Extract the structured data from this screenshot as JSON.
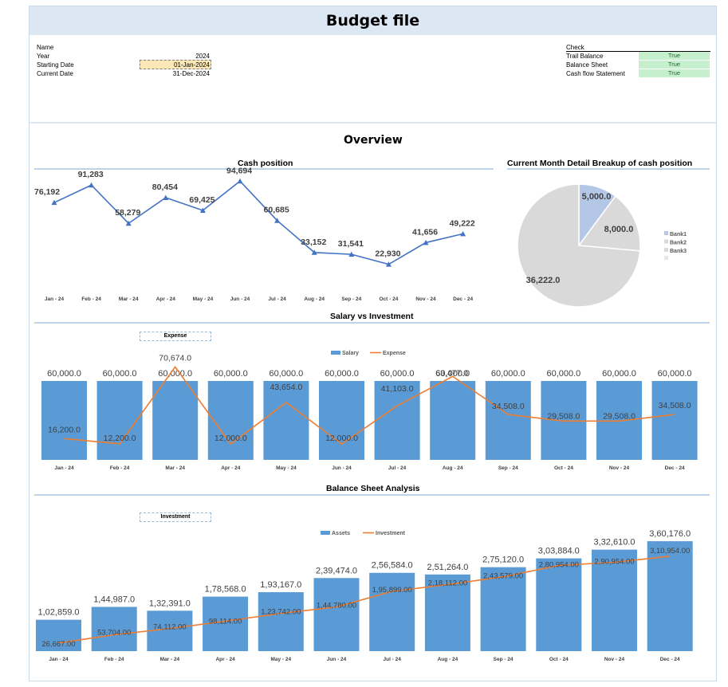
{
  "title": "Budget file",
  "info": {
    "labels": [
      "Name",
      "Year",
      "Starting Date",
      "Current Date"
    ],
    "year": "2024",
    "starting_date": "01-Jan-2024",
    "current_date": "31-Dec-2024"
  },
  "check": {
    "header": "Check",
    "items": [
      {
        "label": "Trail Balance",
        "value": "True"
      },
      {
        "label": "Balance Sheet",
        "value": "True"
      },
      {
        "label": "Cash flow Statement",
        "value": "True"
      }
    ]
  },
  "overview_title": "Overview",
  "colors": {
    "blue_bar": "#5b9bd5",
    "orange_line": "#ed7d31",
    "line_blue": "#4472c4",
    "pie_grey": "#d9d9d9",
    "pie_blue": "#b4c7e7"
  },
  "chart_data": [
    {
      "type": "line",
      "title": "Cash position",
      "categories": [
        "Jan - 24",
        "Feb - 24",
        "Mar - 24",
        "Apr - 24",
        "May - 24",
        "Jun - 24",
        "Jul - 24",
        "Aug - 24",
        "Sep - 24",
        "Oct - 24",
        "Nov - 24",
        "Dec - 24"
      ],
      "values": [
        76192,
        91283,
        58279,
        80454,
        69425,
        94694,
        60685,
        33152,
        31541,
        22930,
        41656,
        49222
      ],
      "labels": [
        "76,192",
        "91,283",
        "58,279",
        "80,454",
        "69,425",
        "94,694",
        "60,685",
        "33,152",
        "31,541",
        "22,930",
        "41,656",
        "49,222"
      ],
      "ylim": [
        0,
        110000
      ]
    },
    {
      "type": "pie",
      "title": "Current Month Detail Breakup of cash position",
      "slices": [
        {
          "name": "Bank1",
          "value": 5000,
          "label": "5,000.0"
        },
        {
          "name": "Bank2",
          "value": 8000,
          "label": "8,000.0"
        },
        {
          "name": "Bank3",
          "value": 36222,
          "label": "36,222.0"
        }
      ],
      "legend": "right"
    },
    {
      "type": "bar",
      "title": "Salary vs Investment",
      "filter_label": "Expense",
      "categories": [
        "Jan - 24",
        "Feb - 24",
        "Mar - 24",
        "Apr - 24",
        "May - 24",
        "Jun - 24",
        "Jul - 24",
        "Aug - 24",
        "Sep - 24",
        "Oct - 24",
        "Nov - 24",
        "Dec - 24"
      ],
      "series": [
        {
          "name": "Salary",
          "kind": "bar",
          "values": [
            60000,
            60000,
            60000,
            60000,
            60000,
            60000,
            60000,
            60000,
            60000,
            60000,
            60000,
            60000
          ],
          "labels": [
            "60,000.0",
            "60,000.0",
            "60,000.0",
            "60,000.0",
            "60,000.0",
            "60,000.0",
            "60,000.0",
            "60,000.0",
            "60,000.0",
            "60,000.0",
            "60,000.0",
            "60,000.0"
          ]
        },
        {
          "name": "Expense",
          "kind": "line",
          "values": [
            16200,
            12200,
            70674,
            12000,
            43654,
            12000,
            41103,
            63477,
            34508,
            29508,
            29508,
            34508
          ],
          "labels": [
            "16,200.0",
            "12,200.0",
            "70,674.0",
            "12,000.0",
            "43,654.0",
            "12,000.0",
            "41,103.0",
            "63,477.0",
            "34,508.0",
            "29,508.0",
            "29,508.0",
            "34,508.0"
          ]
        }
      ],
      "ylim": [
        0,
        80000
      ],
      "legend": "top"
    },
    {
      "type": "bar",
      "title": "Balance Sheet Analysis",
      "filter_label": "Investment",
      "categories": [
        "Jan - 24",
        "Feb - 24",
        "Mar - 24",
        "Apr - 24",
        "May - 24",
        "Jun - 24",
        "Jul - 24",
        "Aug - 24",
        "Sep - 24",
        "Oct - 24",
        "Nov - 24",
        "Dec - 24"
      ],
      "series": [
        {
          "name": "Assets",
          "kind": "bar",
          "values": [
            102859,
            144987,
            132391,
            178568,
            193167,
            239474,
            256584,
            251264,
            275120,
            303884,
            332610,
            360176
          ],
          "labels": [
            "1,02,859.0",
            "1,44,987.0",
            "1,32,391.0",
            "1,78,568.0",
            "1,93,167.0",
            "2,39,474.0",
            "2,56,584.0",
            "2,51,264.0",
            "2,75,120.0",
            "3,03,884.0",
            "3,32,610.0",
            "3,60,176.0"
          ]
        },
        {
          "name": "Investment",
          "kind": "line",
          "values": [
            26667,
            53704,
            74112,
            98114,
            123742,
            144780,
            195899,
            218112,
            243579,
            280954,
            290954,
            310954
          ],
          "labels": [
            "26,667.00",
            "53,704.00",
            "74,112.00",
            "98,114.00",
            "1,23,742.00",
            "1,44,780.00",
            "1,95,899.00",
            "2,18,112.00",
            "2,43,579.00",
            "2,80,954.00",
            "2,90,954.00",
            "3,10,954.00"
          ]
        }
      ],
      "ylim": [
        0,
        410000
      ],
      "legend": "top"
    }
  ]
}
